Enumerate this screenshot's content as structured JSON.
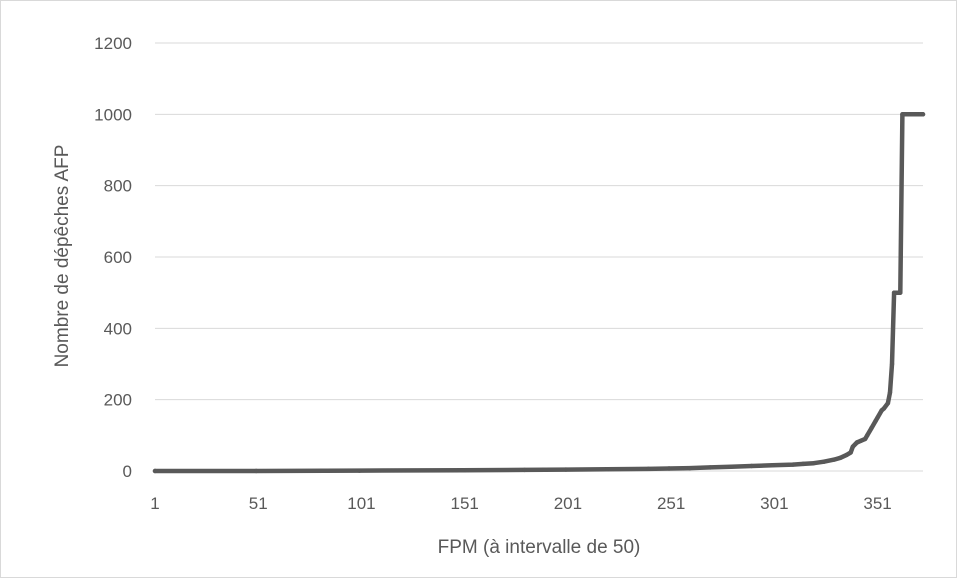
{
  "chart_data": {
    "type": "line",
    "title": "",
    "xlabel": "FPM (à intervalle de 50)",
    "ylabel": "Nombre de dépêches AFP",
    "x_tick_labels": [
      "1",
      "51",
      "101",
      "151",
      "201",
      "251",
      "301",
      "351"
    ],
    "y_tick_labels": [
      "0",
      "200",
      "400",
      "600",
      "800",
      "1000",
      "1200"
    ],
    "xlim": [
      1,
      373
    ],
    "ylim": [
      0,
      1200
    ],
    "grid": true,
    "legend": "none",
    "series": [
      {
        "color": "#595959",
        "x": [
          1,
          50,
          100,
          150,
          180,
          200,
          220,
          240,
          250,
          260,
          270,
          280,
          290,
          300,
          310,
          315,
          320,
          325,
          330,
          333,
          336,
          338,
          339,
          341,
          343,
          345,
          346,
          348,
          350,
          351,
          353,
          354,
          356,
          357,
          358,
          359,
          360,
          361,
          362,
          363,
          364,
          364.5,
          366,
          370,
          373
        ],
        "y": [
          0,
          0,
          1,
          2,
          3,
          4,
          5,
          6,
          7,
          8,
          10,
          12,
          14,
          16,
          18,
          20,
          22,
          26,
          32,
          37,
          45,
          52,
          68,
          80,
          85,
          90,
          100,
          120,
          140,
          150,
          170,
          175,
          190,
          220,
          300,
          500,
          500,
          500,
          500,
          1000,
          1000,
          1000,
          1000,
          1000,
          1000
        ]
      }
    ]
  }
}
